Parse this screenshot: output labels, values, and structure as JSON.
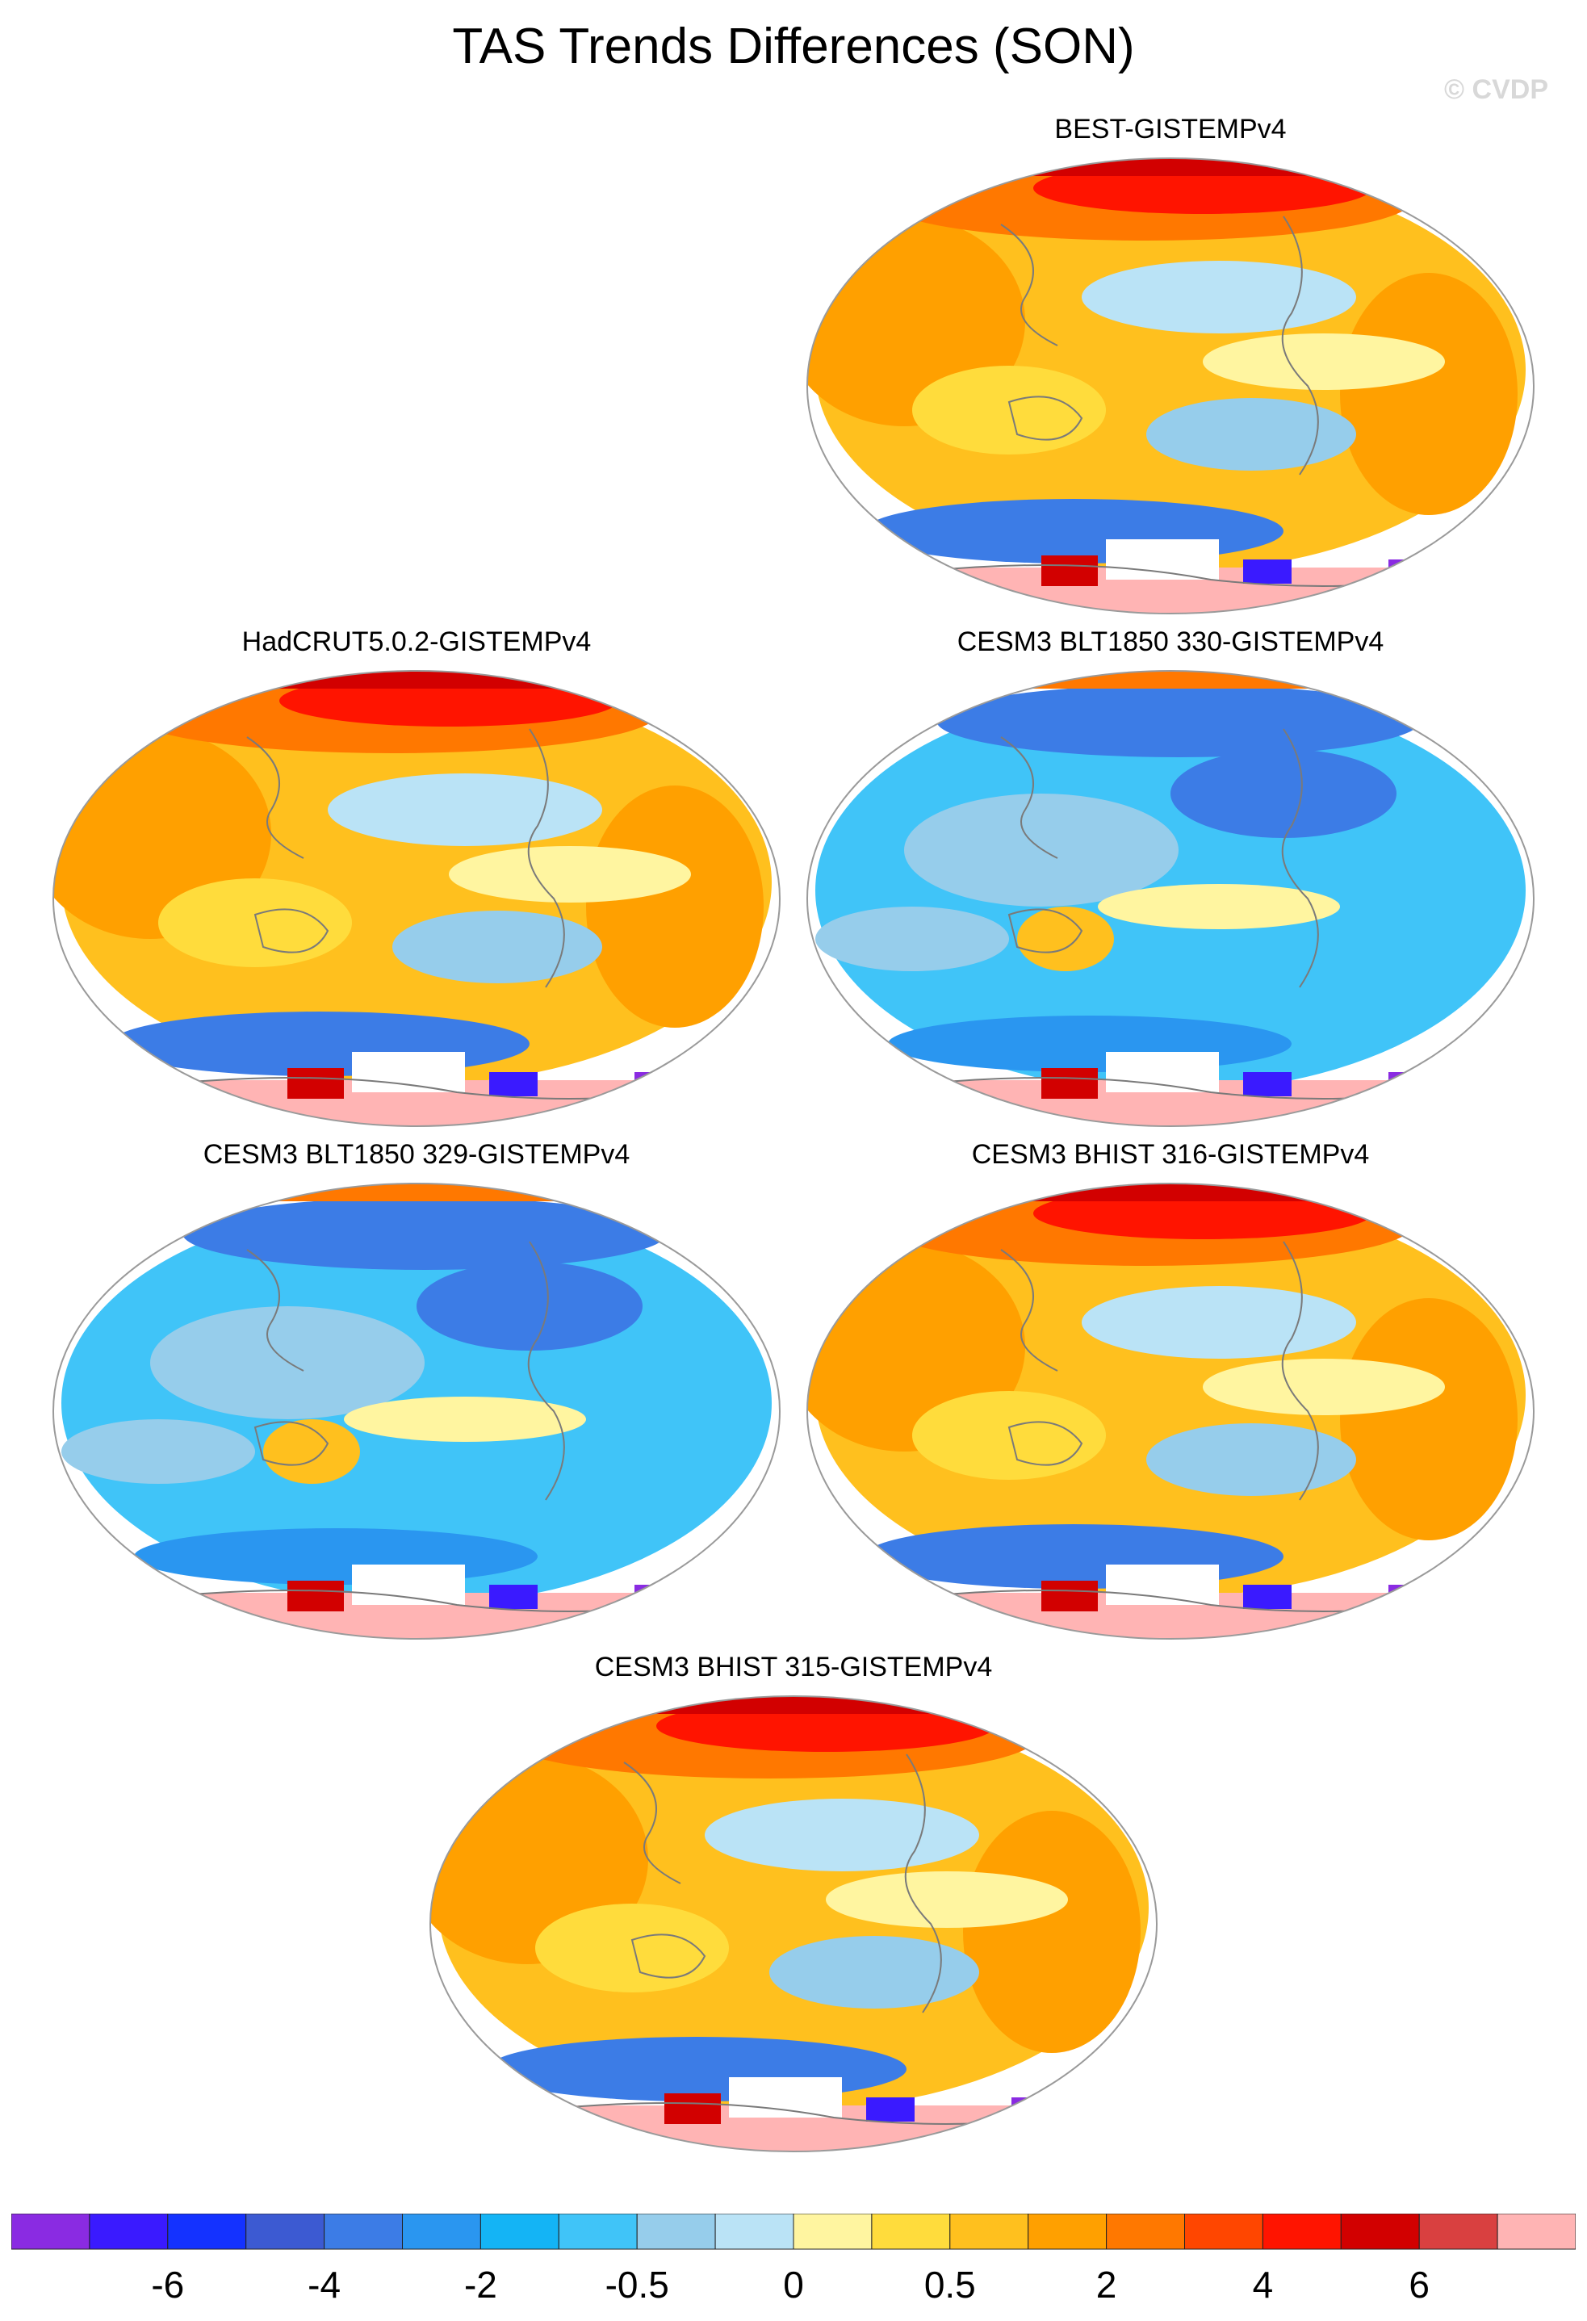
{
  "figure": {
    "title": "TAS Trends Differences (SON)",
    "watermark": "© CVDP"
  },
  "panels": [
    {
      "label": "BEST-GISTEMPv4",
      "pattern": "warm"
    },
    {
      "label": "HadCRUT5.0.2-GISTEMPv4",
      "pattern": "warm"
    },
    {
      "label": "CESM3 BLT1850 330-GISTEMPv4",
      "pattern": "cool"
    },
    {
      "label": "CESM3 BLT1850 329-GISTEMPv4",
      "pattern": "cool"
    },
    {
      "label": "CESM3 BHIST 316-GISTEMPv4",
      "pattern": "warm"
    },
    {
      "label": "CESM3 BHIST 315-GISTEMPv4",
      "pattern": "warm"
    }
  ],
  "colorbar": {
    "colors": [
      "#8a2be2",
      "#3a1aff",
      "#1432ff",
      "#3c5ad2",
      "#3c7ce6",
      "#2a96f0",
      "#14b4f5",
      "#40c4f8",
      "#96cdeb",
      "#bae3f6",
      "#fff5a0",
      "#ffdc3c",
      "#ffc01e",
      "#ffa000",
      "#ff7800",
      "#ff4600",
      "#ff1400",
      "#d20000",
      "#d94040",
      "#ffb4b4"
    ],
    "tick_labels": [
      "-6",
      "-4",
      "-2",
      "-0.5",
      "0",
      "0.5",
      "2",
      "4",
      "6"
    ]
  }
}
